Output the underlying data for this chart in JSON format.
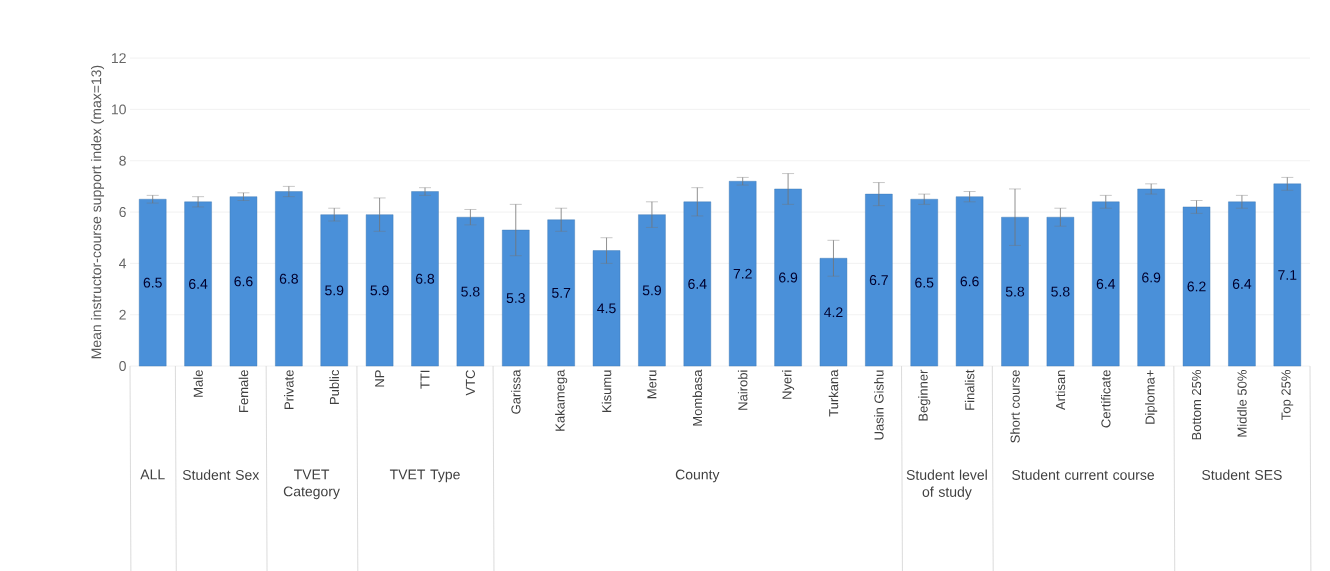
{
  "chart_data": {
    "type": "bar",
    "ylabel": "Mean instructor-course support index (max=13)",
    "categories": [
      null,
      "Male",
      "Female",
      "Private",
      "Public",
      "NP",
      "TTI",
      "VTC",
      "Garissa",
      "Kakamega",
      "Kisumu",
      "Meru",
      "Mombasa",
      "Nairobi",
      "Nyeri",
      "Turkana",
      "Uasin Gishu",
      "Beginner",
      "Finalist",
      "Short course",
      "Artisan",
      "Certificate",
      "Diploma+",
      "Bottom 25%",
      "Middle 50%",
      "Top 25%"
    ],
    "values": [
      6.5,
      6.4,
      6.6,
      6.8,
      5.9,
      5.9,
      6.8,
      5.8,
      5.3,
      5.7,
      4.5,
      5.9,
      6.4,
      7.2,
      6.9,
      4.2,
      6.7,
      6.5,
      6.6,
      5.8,
      5.8,
      6.4,
      6.9,
      6.2,
      6.4,
      7.1
    ],
    "errors": [
      0.15,
      0.2,
      0.15,
      0.2,
      0.25,
      0.65,
      0.15,
      0.3,
      1.0,
      0.45,
      0.5,
      0.5,
      0.55,
      0.15,
      0.6,
      0.7,
      0.45,
      0.2,
      0.2,
      1.1,
      0.35,
      0.25,
      0.2,
      0.25,
      0.25,
      0.25
    ],
    "color": "#4a90d9",
    "data_labels": true,
    "ylim": [
      0,
      12
    ],
    "yticks": [
      0,
      2,
      4,
      6,
      8,
      10,
      12
    ],
    "grid": "y",
    "annotations": [
      "ALL",
      "Student Sex",
      "TVET Category",
      "TVET Type",
      "County",
      "Student level of study",
      "Student current course",
      "Student SES"
    ]
  }
}
